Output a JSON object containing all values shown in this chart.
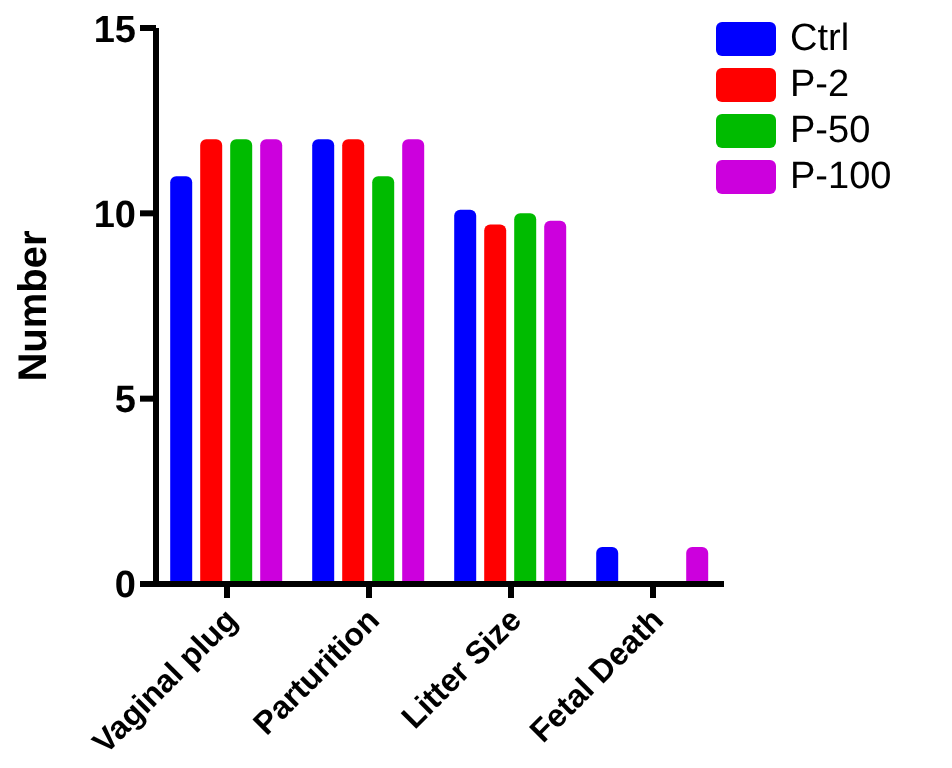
{
  "chart_data": {
    "type": "bar",
    "ylabel": "Number",
    "categories": [
      "Vaginal plug",
      "Parturition",
      "Litter Size",
      "Fetal Death"
    ],
    "series": [
      {
        "name": "Ctrl",
        "color": "#0000ff",
        "values": [
          11,
          12,
          10.1,
          1
        ]
      },
      {
        "name": "P-2",
        "color": "#ff0000",
        "values": [
          12,
          12,
          9.7,
          0
        ]
      },
      {
        "name": "P-50",
        "color": "#00bb00",
        "values": [
          12,
          11,
          10,
          0
        ]
      },
      {
        "name": "P-100",
        "color": "#cc00dd",
        "values": [
          12,
          12,
          9.8,
          1
        ]
      }
    ],
    "ylim": [
      0,
      15
    ],
    "yticks": [
      0,
      5,
      10,
      15
    ],
    "grid": false,
    "legend": "top right"
  }
}
